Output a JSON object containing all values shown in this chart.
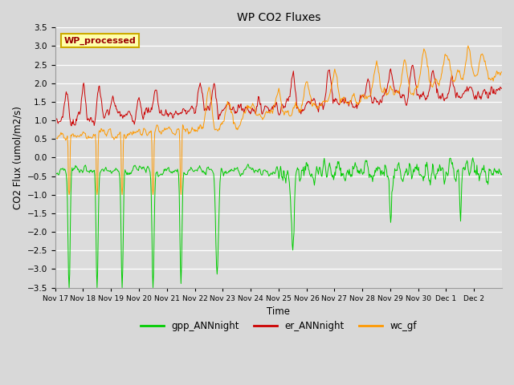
{
  "title": "WP CO2 Fluxes",
  "xlabel": "Time",
  "ylabel": "CO2 Flux (umol/m2/s)",
  "ylim": [
    -3.5,
    3.5
  ],
  "yticks": [
    -3.5,
    -3.0,
    -2.5,
    -2.0,
    -1.5,
    -1.0,
    -0.5,
    0.0,
    0.5,
    1.0,
    1.5,
    2.0,
    2.5,
    3.0,
    3.5
  ],
  "xtick_labels": [
    "Nov 17",
    "Nov 18",
    "Nov 19",
    "Nov 20",
    "Nov 21",
    "Nov 22",
    "Nov 23",
    "Nov 24",
    "Nov 25",
    "Nov 26",
    "Nov 27",
    "Nov 28",
    "Nov 29",
    "Nov 30",
    "Dec 1",
    "Dec 2"
  ],
  "gpp_color": "#00cc00",
  "er_color": "#cc0000",
  "wc_color": "#ff9900",
  "label_bg": "#ffffaa",
  "label_text_color": "#990000",
  "label_text": "WP_processed",
  "legend_labels": [
    "gpp_ANNnight",
    "er_ANNnight",
    "wc_gf"
  ],
  "linewidth": 0.7,
  "n_points": 768,
  "seed": 7
}
